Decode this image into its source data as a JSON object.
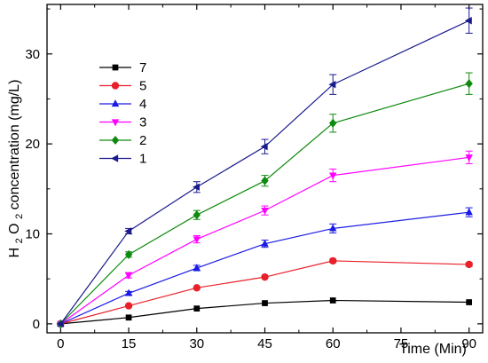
{
  "chart_data": {
    "type": "line",
    "title": "",
    "xlabel": "Time (Min)",
    "ylabel": {
      "prefix": "H",
      "sub1": "2",
      "mid": "O",
      "sub2": "2",
      "suffix": " concentration (mg/L)"
    },
    "xlim": [
      -3,
      93
    ],
    "ylim": [
      -1,
      35.5
    ],
    "xticks": [
      0,
      15,
      30,
      45,
      60,
      75,
      90
    ],
    "yticks": [
      0,
      10,
      20,
      30
    ],
    "xtick_labels": [
      "0",
      "15",
      "30",
      "45",
      "60",
      "75",
      "90"
    ],
    "ytick_labels": [
      "0",
      "10",
      "20",
      "30"
    ],
    "grid": false,
    "legend_position": "upper-left",
    "x": [
      0,
      15,
      30,
      45,
      60,
      90
    ],
    "series": [
      {
        "name": "7",
        "color": "#000000",
        "marker": "square",
        "values": [
          0,
          0.7,
          1.7,
          2.3,
          2.6,
          2.4
        ],
        "errors": [
          0.1,
          0.1,
          0.1,
          0.1,
          0.1,
          0.1
        ]
      },
      {
        "name": "5",
        "color": "#E8202A",
        "marker": "circle",
        "values": [
          0,
          2.0,
          4.0,
          5.2,
          7.0,
          6.6
        ],
        "errors": [
          0.1,
          0.15,
          0.15,
          0.15,
          0.2,
          0.2
        ]
      },
      {
        "name": "4",
        "color": "#1A1AE6",
        "marker": "triangle-up",
        "values": [
          0,
          3.4,
          6.2,
          8.9,
          10.6,
          12.4
        ],
        "errors": [
          0.1,
          0.2,
          0.3,
          0.4,
          0.5,
          0.5
        ]
      },
      {
        "name": "3",
        "color": "#FF00FF",
        "marker": "triangle-down",
        "values": [
          0,
          5.4,
          9.4,
          12.6,
          16.5,
          18.5
        ],
        "errors": [
          0.1,
          0.3,
          0.4,
          0.5,
          0.7,
          0.7
        ]
      },
      {
        "name": "2",
        "color": "#0E8A0E",
        "marker": "diamond",
        "values": [
          0,
          7.7,
          12.1,
          15.9,
          22.3,
          26.7
        ],
        "errors": [
          0.1,
          0.3,
          0.5,
          0.6,
          1.0,
          1.2
        ]
      },
      {
        "name": "1",
        "color": "#1A1A8C",
        "marker": "triangle-left",
        "values": [
          0,
          10.3,
          15.2,
          19.7,
          26.6,
          33.7
        ],
        "errors": [
          0.1,
          0.3,
          0.6,
          0.8,
          1.1,
          1.4
        ]
      }
    ]
  }
}
